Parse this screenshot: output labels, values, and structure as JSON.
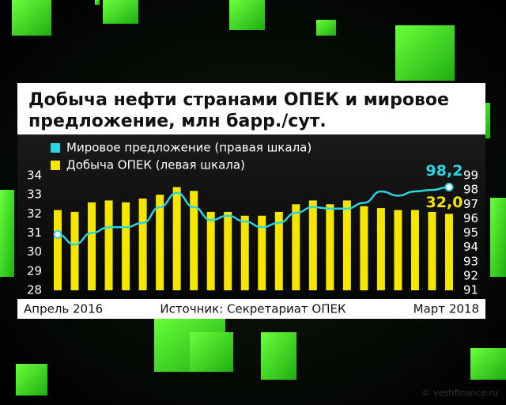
{
  "chart_data": {
    "type": "bar_line",
    "title": [
      "Добыча нефти странами ОПЕК и мировое",
      "предложение, млн барр./сут."
    ],
    "categories": [
      "Апрель 2016",
      null,
      null,
      null,
      null,
      null,
      null,
      null,
      null,
      null,
      null,
      null,
      null,
      null,
      null,
      null,
      null,
      null,
      null,
      null,
      null,
      null,
      null,
      "Март 2018"
    ],
    "series": [
      {
        "name": "Мировое предложение (правая шкала)",
        "color": "#2ad4e0",
        "axis": "y2",
        "kind": "line",
        "values": [
          94.9,
          94.2,
          95.0,
          95.4,
          95.4,
          95.7,
          96.8,
          97.8,
          96.8,
          95.9,
          96.2,
          95.8,
          95.4,
          95.7,
          96.4,
          96.8,
          96.7,
          96.7,
          97.1,
          97.9,
          97.6,
          97.9,
          98.0,
          98.2
        ],
        "value_labels": [
          null,
          null,
          null,
          null,
          null,
          null,
          null,
          null,
          null,
          null,
          null,
          null,
          null,
          null,
          null,
          null,
          null,
          null,
          null,
          null,
          null,
          null,
          null,
          "98,2"
        ]
      },
      {
        "name": "Добыча ОПЕК (левая шкала)",
        "color": "#f5e600",
        "axis": "y",
        "kind": "bar",
        "values": [
          32.2,
          32.1,
          32.6,
          32.7,
          32.6,
          32.8,
          33.0,
          33.4,
          33.2,
          32.1,
          32.1,
          31.9,
          31.9,
          32.1,
          32.5,
          32.7,
          32.5,
          32.7,
          32.4,
          32.3,
          32.2,
          32.2,
          32.1,
          32.0
        ],
        "value_labels": [
          null,
          null,
          null,
          null,
          null,
          null,
          null,
          null,
          null,
          null,
          null,
          null,
          null,
          null,
          null,
          null,
          null,
          null,
          null,
          null,
          null,
          null,
          null,
          "32,0"
        ]
      }
    ],
    "ylim": [
      28,
      34
    ],
    "yticks": [
      28,
      29,
      30,
      31,
      32,
      33,
      34
    ],
    "y2lim": [
      91,
      99
    ],
    "y2ticks": [
      91,
      92,
      93,
      94,
      95,
      96,
      97,
      98,
      99
    ],
    "source": "Источник: Секретариат ОПЕК",
    "watermark": "© vestifinance.ru"
  }
}
